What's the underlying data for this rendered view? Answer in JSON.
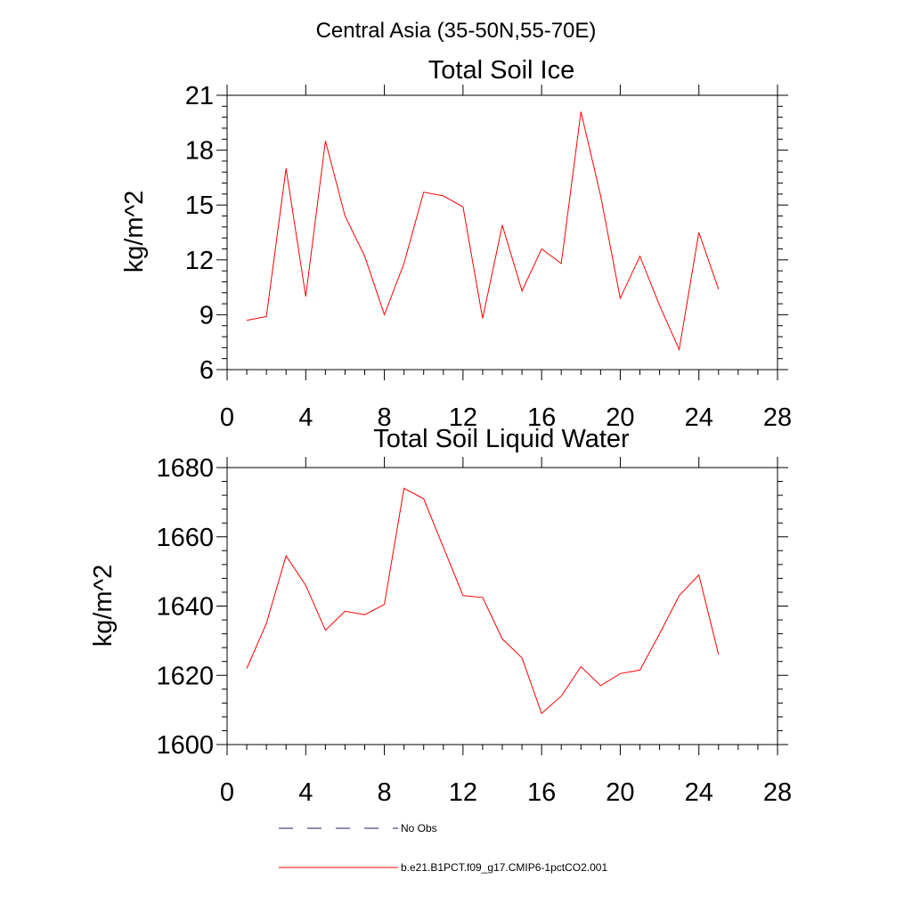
{
  "figure": {
    "title": "Central Asia (35-50N,55-70E)"
  },
  "chart_data": [
    {
      "type": "line",
      "title": "Total Soil Ice",
      "xlabel": "",
      "ylabel": "kg/m^2",
      "xlim": [
        0,
        28
      ],
      "ylim": [
        6,
        21
      ],
      "xticks": [
        0,
        4,
        8,
        12,
        16,
        20,
        24,
        28
      ],
      "yticks": [
        6,
        9,
        12,
        15,
        18,
        21
      ],
      "x": [
        1,
        2,
        3,
        4,
        5,
        6,
        7,
        8,
        9,
        10,
        11,
        12,
        13,
        14,
        15,
        16,
        17,
        18,
        19,
        20,
        21,
        22,
        23,
        24,
        25
      ],
      "series": [
        {
          "name": "b.e21.B1PCT.f09_g17.CMIP6-1pctCO2.001",
          "color": "#ff0000",
          "values": [
            8.7,
            8.9,
            17.0,
            10.0,
            18.5,
            14.4,
            12.2,
            9.0,
            11.8,
            15.7,
            15.5,
            14.9,
            8.8,
            13.9,
            10.3,
            12.6,
            11.8,
            20.1,
            15.5,
            9.9,
            12.2,
            9.5,
            7.1,
            13.5,
            10.4
          ]
        }
      ]
    },
    {
      "type": "line",
      "title": "Total Soil Liquid Water",
      "xlabel": "",
      "ylabel": "kg/m^2",
      "xlim": [
        0,
        28
      ],
      "ylim": [
        1600,
        1680
      ],
      "xticks": [
        0,
        4,
        8,
        12,
        16,
        20,
        24,
        28
      ],
      "yticks": [
        1600,
        1620,
        1640,
        1660,
        1680
      ],
      "x": [
        1,
        2,
        3,
        4,
        5,
        6,
        7,
        8,
        9,
        10,
        11,
        12,
        13,
        14,
        15,
        16,
        17,
        18,
        19,
        20,
        21,
        22,
        23,
        24,
        25
      ],
      "series": [
        {
          "name": "b.e21.B1PCT.f09_g17.CMIP6-1pctCO2.001",
          "color": "#ff0000",
          "values": [
            1622,
            1635,
            1654.5,
            1646,
            1633,
            1638.5,
            1637.5,
            1640.5,
            1674,
            1671,
            1657,
            1643,
            1642.5,
            1630.5,
            1625,
            1609,
            1614,
            1622.5,
            1617,
            1620.5,
            1621.5,
            1632,
            1643,
            1649,
            1626
          ]
        }
      ]
    }
  ],
  "legend": {
    "items": [
      {
        "label": "No Obs",
        "color": "#1a1a66",
        "style": "dashed"
      },
      {
        "label": "b.e21.B1PCT.f09_g17.CMIP6-1pctCO2.001",
        "color": "#ff0000",
        "style": "solid"
      }
    ]
  }
}
